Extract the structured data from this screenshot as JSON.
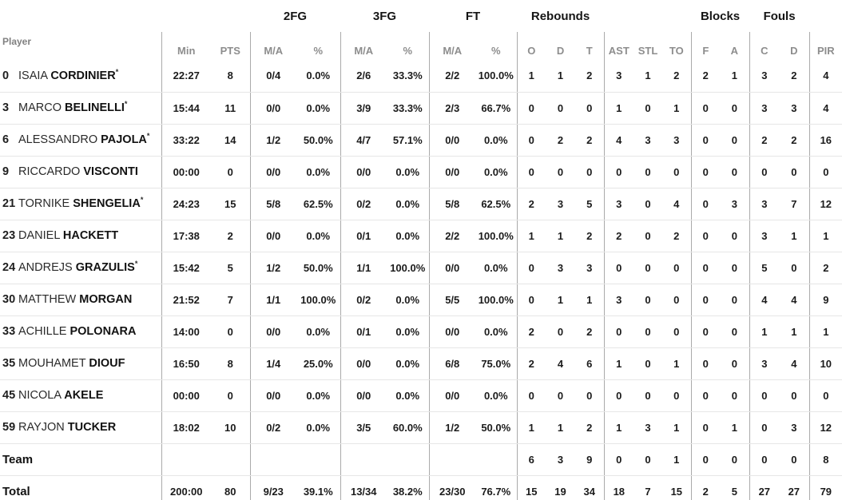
{
  "table": {
    "header": {
      "player": "Player",
      "groups": {
        "fg2": "2FG",
        "fg3": "3FG",
        "ft": "FT",
        "reb": "Rebounds",
        "blocks": "Blocks",
        "fouls": "Fouls"
      },
      "sub": {
        "min": "Min",
        "pts": "PTS",
        "ma": "M/A",
        "pct": "%",
        "o": "O",
        "d": "D",
        "t": "T",
        "ast": "AST",
        "stl": "STL",
        "to": "TO",
        "f": "F",
        "a": "A",
        "c": "C",
        "d2": "D",
        "pir": "PIR"
      }
    },
    "starter_mark": "*",
    "rows": [
      {
        "num": "0",
        "first": "ISAIA",
        "last": "CORDINIER",
        "starter": true,
        "min": "22:27",
        "pts": "8",
        "fg2_ma": "0/4",
        "fg2_pct": "0.0%",
        "fg3_ma": "2/6",
        "fg3_pct": "33.3%",
        "ft_ma": "2/2",
        "ft_pct": "100.0%",
        "o": "1",
        "d": "1",
        "t": "2",
        "ast": "3",
        "stl": "1",
        "to": "2",
        "bf": "2",
        "ba": "1",
        "fc": "3",
        "fd": "2",
        "pir": "4"
      },
      {
        "num": "3",
        "first": "MARCO",
        "last": "BELINELLI",
        "starter": true,
        "min": "15:44",
        "pts": "11",
        "fg2_ma": "0/0",
        "fg2_pct": "0.0%",
        "fg3_ma": "3/9",
        "fg3_pct": "33.3%",
        "ft_ma": "2/3",
        "ft_pct": "66.7%",
        "o": "0",
        "d": "0",
        "t": "0",
        "ast": "1",
        "stl": "0",
        "to": "1",
        "bf": "0",
        "ba": "0",
        "fc": "3",
        "fd": "3",
        "pir": "4"
      },
      {
        "num": "6",
        "first": "ALESSANDRO",
        "last": "PAJOLA",
        "starter": true,
        "min": "33:22",
        "pts": "14",
        "fg2_ma": "1/2",
        "fg2_pct": "50.0%",
        "fg3_ma": "4/7",
        "fg3_pct": "57.1%",
        "ft_ma": "0/0",
        "ft_pct": "0.0%",
        "o": "0",
        "d": "2",
        "t": "2",
        "ast": "4",
        "stl": "3",
        "to": "3",
        "bf": "0",
        "ba": "0",
        "fc": "2",
        "fd": "2",
        "pir": "16"
      },
      {
        "num": "9",
        "first": "RICCARDO",
        "last": "VISCONTI",
        "starter": false,
        "min": "00:00",
        "pts": "0",
        "fg2_ma": "0/0",
        "fg2_pct": "0.0%",
        "fg3_ma": "0/0",
        "fg3_pct": "0.0%",
        "ft_ma": "0/0",
        "ft_pct": "0.0%",
        "o": "0",
        "d": "0",
        "t": "0",
        "ast": "0",
        "stl": "0",
        "to": "0",
        "bf": "0",
        "ba": "0",
        "fc": "0",
        "fd": "0",
        "pir": "0"
      },
      {
        "num": "21",
        "first": "TORNIKE",
        "last": "SHENGELIA",
        "starter": true,
        "min": "24:23",
        "pts": "15",
        "fg2_ma": "5/8",
        "fg2_pct": "62.5%",
        "fg3_ma": "0/2",
        "fg3_pct": "0.0%",
        "ft_ma": "5/8",
        "ft_pct": "62.5%",
        "o": "2",
        "d": "3",
        "t": "5",
        "ast": "3",
        "stl": "0",
        "to": "4",
        "bf": "0",
        "ba": "3",
        "fc": "3",
        "fd": "7",
        "pir": "12"
      },
      {
        "num": "23",
        "first": "DANIEL",
        "last": "HACKETT",
        "starter": false,
        "min": "17:38",
        "pts": "2",
        "fg2_ma": "0/0",
        "fg2_pct": "0.0%",
        "fg3_ma": "0/1",
        "fg3_pct": "0.0%",
        "ft_ma": "2/2",
        "ft_pct": "100.0%",
        "o": "1",
        "d": "1",
        "t": "2",
        "ast": "2",
        "stl": "0",
        "to": "2",
        "bf": "0",
        "ba": "0",
        "fc": "3",
        "fd": "1",
        "pir": "1"
      },
      {
        "num": "24",
        "first": "ANDREJS",
        "last": "GRAZULIS",
        "starter": true,
        "min": "15:42",
        "pts": "5",
        "fg2_ma": "1/2",
        "fg2_pct": "50.0%",
        "fg3_ma": "1/1",
        "fg3_pct": "100.0%",
        "ft_ma": "0/0",
        "ft_pct": "0.0%",
        "o": "0",
        "d": "3",
        "t": "3",
        "ast": "0",
        "stl": "0",
        "to": "0",
        "bf": "0",
        "ba": "0",
        "fc": "5",
        "fd": "0",
        "pir": "2"
      },
      {
        "num": "30",
        "first": "MATTHEW",
        "last": "MORGAN",
        "starter": false,
        "min": "21:52",
        "pts": "7",
        "fg2_ma": "1/1",
        "fg2_pct": "100.0%",
        "fg3_ma": "0/2",
        "fg3_pct": "0.0%",
        "ft_ma": "5/5",
        "ft_pct": "100.0%",
        "o": "0",
        "d": "1",
        "t": "1",
        "ast": "3",
        "stl": "0",
        "to": "0",
        "bf": "0",
        "ba": "0",
        "fc": "4",
        "fd": "4",
        "pir": "9"
      },
      {
        "num": "33",
        "first": "ACHILLE",
        "last": "POLONARA",
        "starter": false,
        "min": "14:00",
        "pts": "0",
        "fg2_ma": "0/0",
        "fg2_pct": "0.0%",
        "fg3_ma": "0/1",
        "fg3_pct": "0.0%",
        "ft_ma": "0/0",
        "ft_pct": "0.0%",
        "o": "2",
        "d": "0",
        "t": "2",
        "ast": "0",
        "stl": "0",
        "to": "0",
        "bf": "0",
        "ba": "0",
        "fc": "1",
        "fd": "1",
        "pir": "1"
      },
      {
        "num": "35",
        "first": "MOUHAMET",
        "last": "DIOUF",
        "starter": false,
        "min": "16:50",
        "pts": "8",
        "fg2_ma": "1/4",
        "fg2_pct": "25.0%",
        "fg3_ma": "0/0",
        "fg3_pct": "0.0%",
        "ft_ma": "6/8",
        "ft_pct": "75.0%",
        "o": "2",
        "d": "4",
        "t": "6",
        "ast": "1",
        "stl": "0",
        "to": "1",
        "bf": "0",
        "ba": "0",
        "fc": "3",
        "fd": "4",
        "pir": "10"
      },
      {
        "num": "45",
        "first": "NICOLA",
        "last": "AKELE",
        "starter": false,
        "min": "00:00",
        "pts": "0",
        "fg2_ma": "0/0",
        "fg2_pct": "0.0%",
        "fg3_ma": "0/0",
        "fg3_pct": "0.0%",
        "ft_ma": "0/0",
        "ft_pct": "0.0%",
        "o": "0",
        "d": "0",
        "t": "0",
        "ast": "0",
        "stl": "0",
        "to": "0",
        "bf": "0",
        "ba": "0",
        "fc": "0",
        "fd": "0",
        "pir": "0"
      },
      {
        "num": "59",
        "first": "RAYJON",
        "last": "TUCKER",
        "starter": false,
        "min": "18:02",
        "pts": "10",
        "fg2_ma": "0/2",
        "fg2_pct": "0.0%",
        "fg3_ma": "3/5",
        "fg3_pct": "60.0%",
        "ft_ma": "1/2",
        "ft_pct": "50.0%",
        "o": "1",
        "d": "1",
        "t": "2",
        "ast": "1",
        "stl": "3",
        "to": "1",
        "bf": "0",
        "ba": "1",
        "fc": "0",
        "fd": "3",
        "pir": "12"
      }
    ],
    "team_row": {
      "label": "Team",
      "min": "",
      "pts": "",
      "fg2_ma": "",
      "fg2_pct": "",
      "fg3_ma": "",
      "fg3_pct": "",
      "ft_ma": "",
      "ft_pct": "",
      "o": "6",
      "d": "3",
      "t": "9",
      "ast": "0",
      "stl": "0",
      "to": "1",
      "bf": "0",
      "ba": "0",
      "fc": "0",
      "fd": "0",
      "pir": "8"
    },
    "total_row": {
      "label": "Total",
      "min": "200:00",
      "pts": "80",
      "fg2_ma": "9/23",
      "fg2_pct": "39.1%",
      "fg3_ma": "13/34",
      "fg3_pct": "38.2%",
      "ft_ma": "23/30",
      "ft_pct": "76.7%",
      "o": "15",
      "d": "19",
      "t": "34",
      "ast": "18",
      "stl": "7",
      "to": "15",
      "bf": "2",
      "ba": "5",
      "fc": "27",
      "fd": "27",
      "pir": "79"
    }
  }
}
